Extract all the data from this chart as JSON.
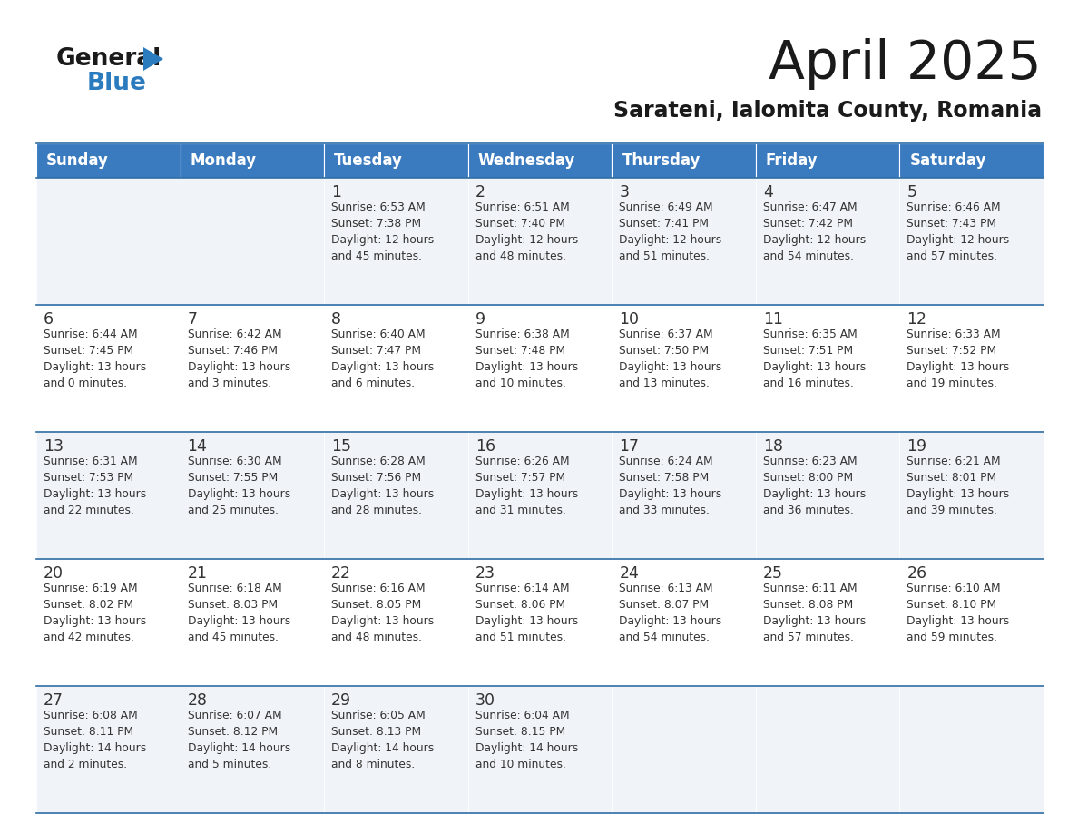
{
  "title": "April 2025",
  "subtitle": "Sarateni, Ialomita County, Romania",
  "header_bg": "#3a7abf",
  "header_text": "#ffffff",
  "border_color": "#2e6da4",
  "days_of_week": [
    "Sunday",
    "Monday",
    "Tuesday",
    "Wednesday",
    "Thursday",
    "Friday",
    "Saturday"
  ],
  "calendar": [
    [
      {
        "day": "",
        "info": ""
      },
      {
        "day": "",
        "info": ""
      },
      {
        "day": "1",
        "info": "Sunrise: 6:53 AM\nSunset: 7:38 PM\nDaylight: 12 hours\nand 45 minutes."
      },
      {
        "day": "2",
        "info": "Sunrise: 6:51 AM\nSunset: 7:40 PM\nDaylight: 12 hours\nand 48 minutes."
      },
      {
        "day": "3",
        "info": "Sunrise: 6:49 AM\nSunset: 7:41 PM\nDaylight: 12 hours\nand 51 minutes."
      },
      {
        "day": "4",
        "info": "Sunrise: 6:47 AM\nSunset: 7:42 PM\nDaylight: 12 hours\nand 54 minutes."
      },
      {
        "day": "5",
        "info": "Sunrise: 6:46 AM\nSunset: 7:43 PM\nDaylight: 12 hours\nand 57 minutes."
      }
    ],
    [
      {
        "day": "6",
        "info": "Sunrise: 6:44 AM\nSunset: 7:45 PM\nDaylight: 13 hours\nand 0 minutes."
      },
      {
        "day": "7",
        "info": "Sunrise: 6:42 AM\nSunset: 7:46 PM\nDaylight: 13 hours\nand 3 minutes."
      },
      {
        "day": "8",
        "info": "Sunrise: 6:40 AM\nSunset: 7:47 PM\nDaylight: 13 hours\nand 6 minutes."
      },
      {
        "day": "9",
        "info": "Sunrise: 6:38 AM\nSunset: 7:48 PM\nDaylight: 13 hours\nand 10 minutes."
      },
      {
        "day": "10",
        "info": "Sunrise: 6:37 AM\nSunset: 7:50 PM\nDaylight: 13 hours\nand 13 minutes."
      },
      {
        "day": "11",
        "info": "Sunrise: 6:35 AM\nSunset: 7:51 PM\nDaylight: 13 hours\nand 16 minutes."
      },
      {
        "day": "12",
        "info": "Sunrise: 6:33 AM\nSunset: 7:52 PM\nDaylight: 13 hours\nand 19 minutes."
      }
    ],
    [
      {
        "day": "13",
        "info": "Sunrise: 6:31 AM\nSunset: 7:53 PM\nDaylight: 13 hours\nand 22 minutes."
      },
      {
        "day": "14",
        "info": "Sunrise: 6:30 AM\nSunset: 7:55 PM\nDaylight: 13 hours\nand 25 minutes."
      },
      {
        "day": "15",
        "info": "Sunrise: 6:28 AM\nSunset: 7:56 PM\nDaylight: 13 hours\nand 28 minutes."
      },
      {
        "day": "16",
        "info": "Sunrise: 6:26 AM\nSunset: 7:57 PM\nDaylight: 13 hours\nand 31 minutes."
      },
      {
        "day": "17",
        "info": "Sunrise: 6:24 AM\nSunset: 7:58 PM\nDaylight: 13 hours\nand 33 minutes."
      },
      {
        "day": "18",
        "info": "Sunrise: 6:23 AM\nSunset: 8:00 PM\nDaylight: 13 hours\nand 36 minutes."
      },
      {
        "day": "19",
        "info": "Sunrise: 6:21 AM\nSunset: 8:01 PM\nDaylight: 13 hours\nand 39 minutes."
      }
    ],
    [
      {
        "day": "20",
        "info": "Sunrise: 6:19 AM\nSunset: 8:02 PM\nDaylight: 13 hours\nand 42 minutes."
      },
      {
        "day": "21",
        "info": "Sunrise: 6:18 AM\nSunset: 8:03 PM\nDaylight: 13 hours\nand 45 minutes."
      },
      {
        "day": "22",
        "info": "Sunrise: 6:16 AM\nSunset: 8:05 PM\nDaylight: 13 hours\nand 48 minutes."
      },
      {
        "day": "23",
        "info": "Sunrise: 6:14 AM\nSunset: 8:06 PM\nDaylight: 13 hours\nand 51 minutes."
      },
      {
        "day": "24",
        "info": "Sunrise: 6:13 AM\nSunset: 8:07 PM\nDaylight: 13 hours\nand 54 minutes."
      },
      {
        "day": "25",
        "info": "Sunrise: 6:11 AM\nSunset: 8:08 PM\nDaylight: 13 hours\nand 57 minutes."
      },
      {
        "day": "26",
        "info": "Sunrise: 6:10 AM\nSunset: 8:10 PM\nDaylight: 13 hours\nand 59 minutes."
      }
    ],
    [
      {
        "day": "27",
        "info": "Sunrise: 6:08 AM\nSunset: 8:11 PM\nDaylight: 14 hours\nand 2 minutes."
      },
      {
        "day": "28",
        "info": "Sunrise: 6:07 AM\nSunset: 8:12 PM\nDaylight: 14 hours\nand 5 minutes."
      },
      {
        "day": "29",
        "info": "Sunrise: 6:05 AM\nSunset: 8:13 PM\nDaylight: 14 hours\nand 8 minutes."
      },
      {
        "day": "30",
        "info": "Sunrise: 6:04 AM\nSunset: 8:15 PM\nDaylight: 14 hours\nand 10 minutes."
      },
      {
        "day": "",
        "info": ""
      },
      {
        "day": "",
        "info": ""
      },
      {
        "day": "",
        "info": ""
      }
    ]
  ],
  "logo_color_general": "#1a1a1a",
  "logo_color_blue": "#2b7bbf",
  "logo_triangle_color": "#2b7bbf",
  "title_color": "#1a1a1a",
  "subtitle_color": "#1a1a1a",
  "cell_text_color": "#333333",
  "cell_bg_odd": "#f0f4f8",
  "cell_bg_even": "#ffffff"
}
